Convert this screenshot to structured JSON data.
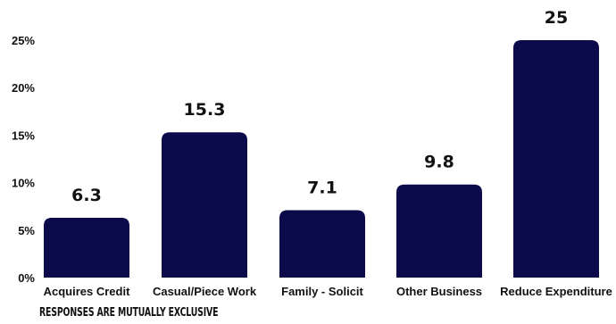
{
  "chart_data": {
    "type": "bar",
    "categories": [
      "Acquires Credit",
      "Casual/Piece Work",
      "Family - Solicit",
      "Other Business",
      "Reduce Expenditure"
    ],
    "values": [
      6.3,
      15.3,
      7.1,
      9.8,
      25
    ],
    "data_labels": [
      "6.3",
      "15.3",
      "7.1",
      "9.8",
      "25"
    ],
    "ylim": [
      0,
      25
    ],
    "yticks": [
      {
        "value": 0,
        "label": "0%"
      },
      {
        "value": 5,
        "label": "5%"
      },
      {
        "value": 10,
        "label": "10%"
      },
      {
        "value": 15,
        "label": "15%"
      },
      {
        "value": 20,
        "label": "20%"
      },
      {
        "value": 25,
        "label": "25%"
      }
    ],
    "grid": false,
    "bar_color": "#0b0a4a"
  },
  "footnote": "RESPONSES ARE MUTUALLY EXCLUSIVE"
}
